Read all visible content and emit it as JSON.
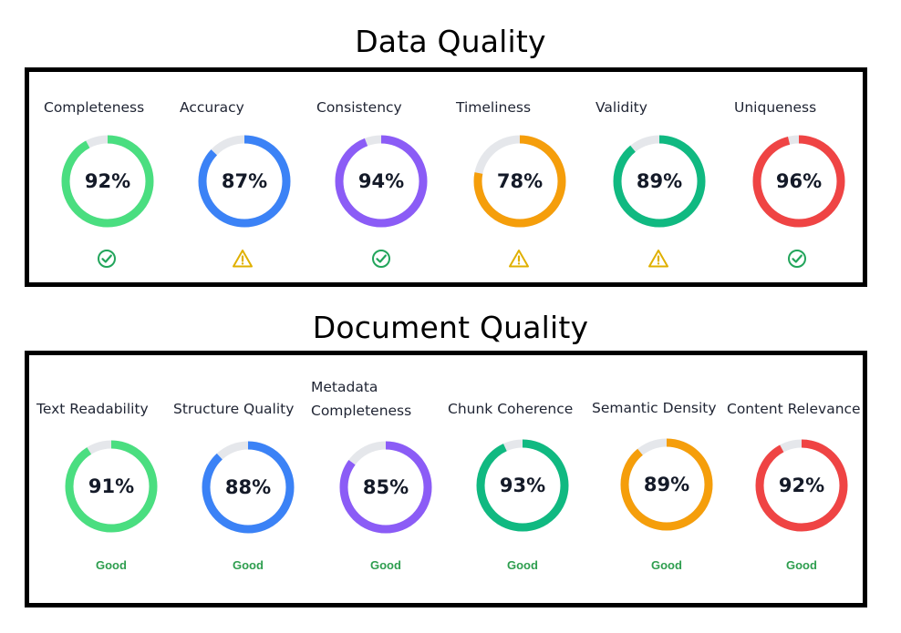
{
  "data_quality": {
    "title": "Data Quality",
    "metrics": [
      {
        "label": "Completeness",
        "value": 92,
        "display": "92%",
        "color": "#4ade80",
        "status_icon": "check-circle-icon"
      },
      {
        "label": "Accuracy",
        "value": 87,
        "display": "87%",
        "color": "#3b82f6",
        "status_icon": "warning-icon"
      },
      {
        "label": "Consistency",
        "value": 94,
        "display": "94%",
        "color": "#8b5cf6",
        "status_icon": "check-circle-icon"
      },
      {
        "label": "Timeliness",
        "value": 78,
        "display": "78%",
        "color": "#f59e0b",
        "status_icon": "warning-icon"
      },
      {
        "label": "Validity",
        "value": 89,
        "display": "89%",
        "color": "#10b981",
        "status_icon": "warning-icon"
      },
      {
        "label": "Uniqueness",
        "value": 96,
        "display": "96%",
        "color": "#ef4444",
        "status_icon": "check-circle-icon"
      }
    ]
  },
  "document_quality": {
    "title": "Document Quality",
    "metrics": [
      {
        "label": "Text Readability",
        "value": 91,
        "display": "91%",
        "color": "#4ade80",
        "status": "Good"
      },
      {
        "label": "Structure Quality",
        "value": 88,
        "display": "88%",
        "color": "#3b82f6",
        "status": "Good"
      },
      {
        "label": "Metadata Completeness",
        "label_lines": [
          "Metadata",
          "Completeness"
        ],
        "value": 85,
        "display": "85%",
        "color": "#8b5cf6",
        "status": "Good"
      },
      {
        "label": "Chunk Coherence",
        "value": 93,
        "display": "93%",
        "color": "#10b981",
        "status": "Good"
      },
      {
        "label": "Semantic Density",
        "value": 89,
        "display": "89%",
        "color": "#f59e0b",
        "status": "Good"
      },
      {
        "label": "Content Relevance",
        "value": 92,
        "display": "92%",
        "color": "#ef4444",
        "status": "Good"
      }
    ]
  },
  "colors": {
    "track": "#e5e7eb",
    "check": "#22a55b",
    "warning": "#e0b000",
    "good_text": "#2e9e4f"
  }
}
